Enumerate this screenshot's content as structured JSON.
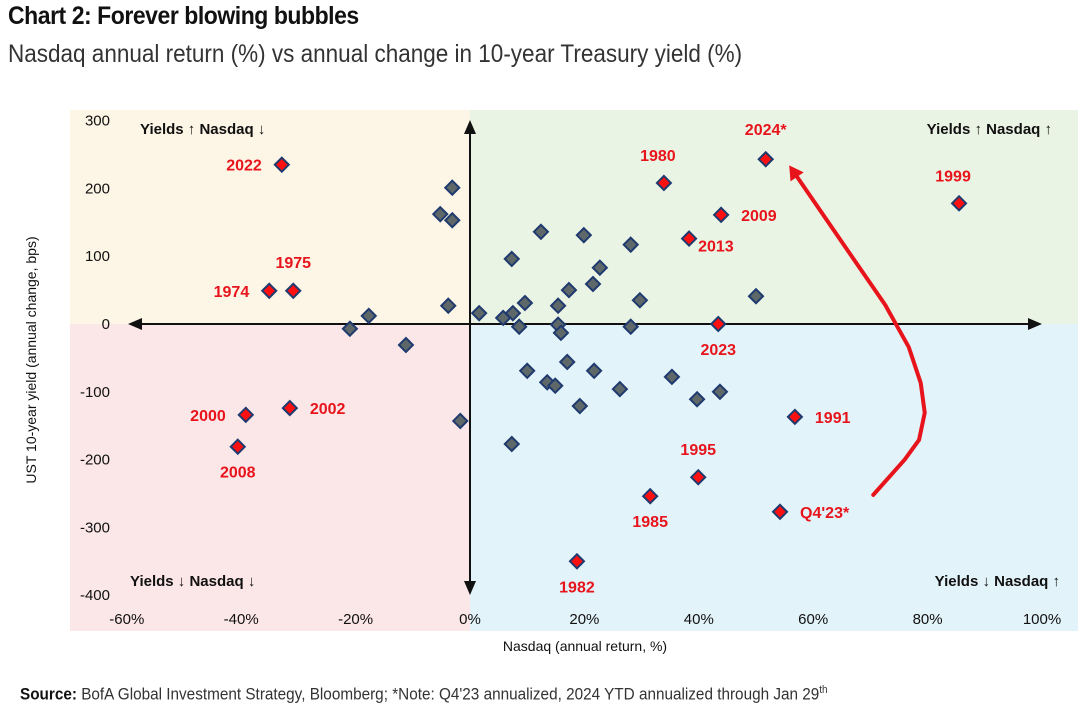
{
  "header": {
    "title": "Chart 2: Forever blowing bubbles",
    "subtitle": "Nasdaq annual return (%) vs annual change in 10-year Treasury yield (%)"
  },
  "footer": {
    "source_label": "Source:",
    "source_text": " BofA Global Investment Strategy, Bloomberg; *Note: Q4'23 annualized, 2024 YTD annualized through Jan 29",
    "source_sup": "th"
  },
  "colors": {
    "quad_top_left": "#fdf5e6",
    "quad_top_right": "#eaf4e4",
    "quad_bottom_left": "#fbe6e8",
    "quad_bottom_right": "#e3f3fa",
    "highlight_fill": "#ff1010",
    "highlight_label": "#e8141c",
    "point_fill": "#5f6868",
    "point_stroke": "#1f3a6e",
    "arrow": "#e8141c"
  },
  "chart_data": {
    "type": "scatter",
    "title": "Chart 2: Forever blowing bubbles",
    "subtitle": "Nasdaq annual return (%) vs annual change in 10-year Treasury yield (%)",
    "xlabel": "Nasdaq (annual return, %)",
    "ylabel": "UST 10-year yield (annual change, bps)",
    "xlim": [
      -60,
      100
    ],
    "ylim": [
      -400,
      300
    ],
    "x_ticks": [
      -60,
      -40,
      -20,
      0,
      20,
      40,
      60,
      80,
      100
    ],
    "x_tick_labels": [
      "-60%",
      "-40%",
      "-20%",
      "0%",
      "20%",
      "40%",
      "60%",
      "80%",
      "100%"
    ],
    "y_ticks": [
      300,
      200,
      100,
      0,
      -100,
      -200,
      -300,
      -400
    ],
    "y_tick_labels": [
      "300",
      "200",
      "100",
      "0",
      "-100",
      "-200",
      "-300",
      "-400"
    ],
    "grid": false,
    "legend": null,
    "quadrant_labels": [
      {
        "position": "top-left",
        "text": "Yields ↑ Nasdaq ↓"
      },
      {
        "position": "top-right",
        "text": "Yields ↑ Nasdaq ↑"
      },
      {
        "position": "bottom-left",
        "text": "Yields ↓ Nasdaq ↓"
      },
      {
        "position": "bottom-right",
        "text": "Yields ↓ Nasdaq ↑"
      }
    ],
    "highlighted": [
      {
        "label": "2022",
        "x": -32.9,
        "y": 235,
        "label_pos": "left"
      },
      {
        "label": "1974",
        "x": -35.1,
        "y": 49,
        "label_pos": "left"
      },
      {
        "label": "1975",
        "x": -30.9,
        "y": 49,
        "label_pos": "above"
      },
      {
        "label": "2000",
        "x": -39.2,
        "y": -134,
        "label_pos": "left"
      },
      {
        "label": "2002",
        "x": -31.5,
        "y": -124,
        "label_pos": "right"
      },
      {
        "label": "2008",
        "x": -40.6,
        "y": -181,
        "label_pos": "below"
      },
      {
        "label": "1980",
        "x": 33.9,
        "y": 208,
        "label_pos": "above"
      },
      {
        "label": "2024*",
        "x": 51.7,
        "y": 243,
        "label_pos": "above"
      },
      {
        "label": "2009",
        "x": 43.9,
        "y": 161,
        "label_pos": "right"
      },
      {
        "label": "2013",
        "x": 38.3,
        "y": 126,
        "label_pos": "below-right"
      },
      {
        "label": "1999",
        "x": 85.5,
        "y": 178,
        "label_pos": "above"
      },
      {
        "label": "2023",
        "x": 43.4,
        "y": 0,
        "label_pos": "below"
      },
      {
        "label": "1991",
        "x": 56.8,
        "y": -137,
        "label_pos": "right"
      },
      {
        "label": "1995",
        "x": 39.9,
        "y": -226,
        "label_pos": "above"
      },
      {
        "label": "1985",
        "x": 31.5,
        "y": -254,
        "label_pos": "below"
      },
      {
        "label": "Q4'23*",
        "x": 54.2,
        "y": -277,
        "label_pos": "right"
      },
      {
        "label": "1982",
        "x": 18.7,
        "y": -350,
        "label_pos": "below"
      }
    ],
    "other_points": [
      {
        "x": -3.1,
        "y": 201
      },
      {
        "x": -5.2,
        "y": 162
      },
      {
        "x": -3.1,
        "y": 153
      },
      {
        "x": -3.8,
        "y": 27
      },
      {
        "x": -17.7,
        "y": 12
      },
      {
        "x": -21.0,
        "y": -7
      },
      {
        "x": -11.2,
        "y": -31
      },
      {
        "x": -1.7,
        "y": -143
      },
      {
        "x": 1.6,
        "y": 16
      },
      {
        "x": 5.8,
        "y": 9
      },
      {
        "x": 7.5,
        "y": 16
      },
      {
        "x": 9.6,
        "y": 31
      },
      {
        "x": 8.6,
        "y": -4
      },
      {
        "x": 7.3,
        "y": 96
      },
      {
        "x": 12.4,
        "y": 136
      },
      {
        "x": 19.9,
        "y": 131
      },
      {
        "x": 28.1,
        "y": 117
      },
      {
        "x": 22.7,
        "y": 83
      },
      {
        "x": 21.5,
        "y": 59
      },
      {
        "x": 17.3,
        "y": 50
      },
      {
        "x": 29.7,
        "y": 35
      },
      {
        "x": 15.4,
        "y": 27
      },
      {
        "x": 15.4,
        "y": -1
      },
      {
        "x": 15.9,
        "y": -13
      },
      {
        "x": 28.1,
        "y": -4
      },
      {
        "x": 50.0,
        "y": 41
      },
      {
        "x": 17.0,
        "y": -56
      },
      {
        "x": 10.0,
        "y": -69
      },
      {
        "x": 21.7,
        "y": -69
      },
      {
        "x": 13.5,
        "y": -86
      },
      {
        "x": 14.9,
        "y": -91
      },
      {
        "x": 26.2,
        "y": -96
      },
      {
        "x": 35.3,
        "y": -78
      },
      {
        "x": 39.7,
        "y": -111
      },
      {
        "x": 43.7,
        "y": -100
      },
      {
        "x": 19.2,
        "y": -121
      },
      {
        "x": 7.3,
        "y": -177
      }
    ],
    "annotation_arrow": {
      "from": "Q4'23*",
      "to": "2024*",
      "path": [
        {
          "x": 70.5,
          "y": -252
        },
        {
          "x": 76.0,
          "y": -200
        },
        {
          "x": 78.5,
          "y": -171
        },
        {
          "x": 79.5,
          "y": -131
        },
        {
          "x": 78.8,
          "y": -87
        },
        {
          "x": 76.7,
          "y": -34
        },
        {
          "x": 72.6,
          "y": 28
        },
        {
          "x": 66.8,
          "y": 99
        },
        {
          "x": 55.8,
          "y": 234
        }
      ]
    }
  }
}
